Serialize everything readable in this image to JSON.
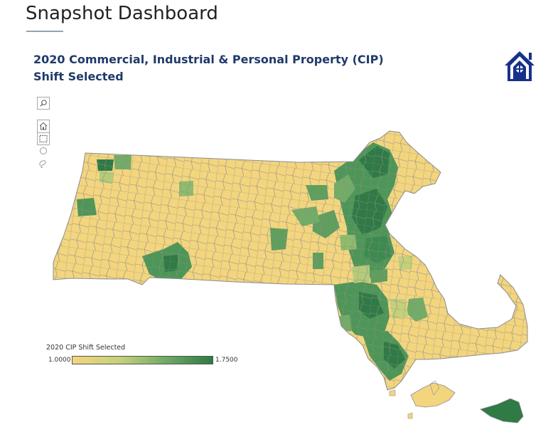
{
  "header": {
    "title": "Snapshot Dashboard"
  },
  "map": {
    "title_line1": "2020 Commercial, Industrial & Personal Property (CIP)",
    "title_line2": "Shift Selected"
  },
  "legend": {
    "title": "2020 CIP Shift Selected",
    "min_label": "1.0000",
    "max_label": "1.7500",
    "color_low": "#f3d57e",
    "color_high": "#2f7a45"
  },
  "colors": {
    "title_blue": "#1f3a6a",
    "logo_blue": "#17318a",
    "border": "#8c8c8c"
  },
  "tools": [
    {
      "name": "search-icon"
    },
    {
      "name": "home-icon"
    },
    {
      "name": "rectangle-select-icon"
    },
    {
      "name": "radial-select-icon"
    },
    {
      "name": "lasso-select-icon"
    }
  ]
}
